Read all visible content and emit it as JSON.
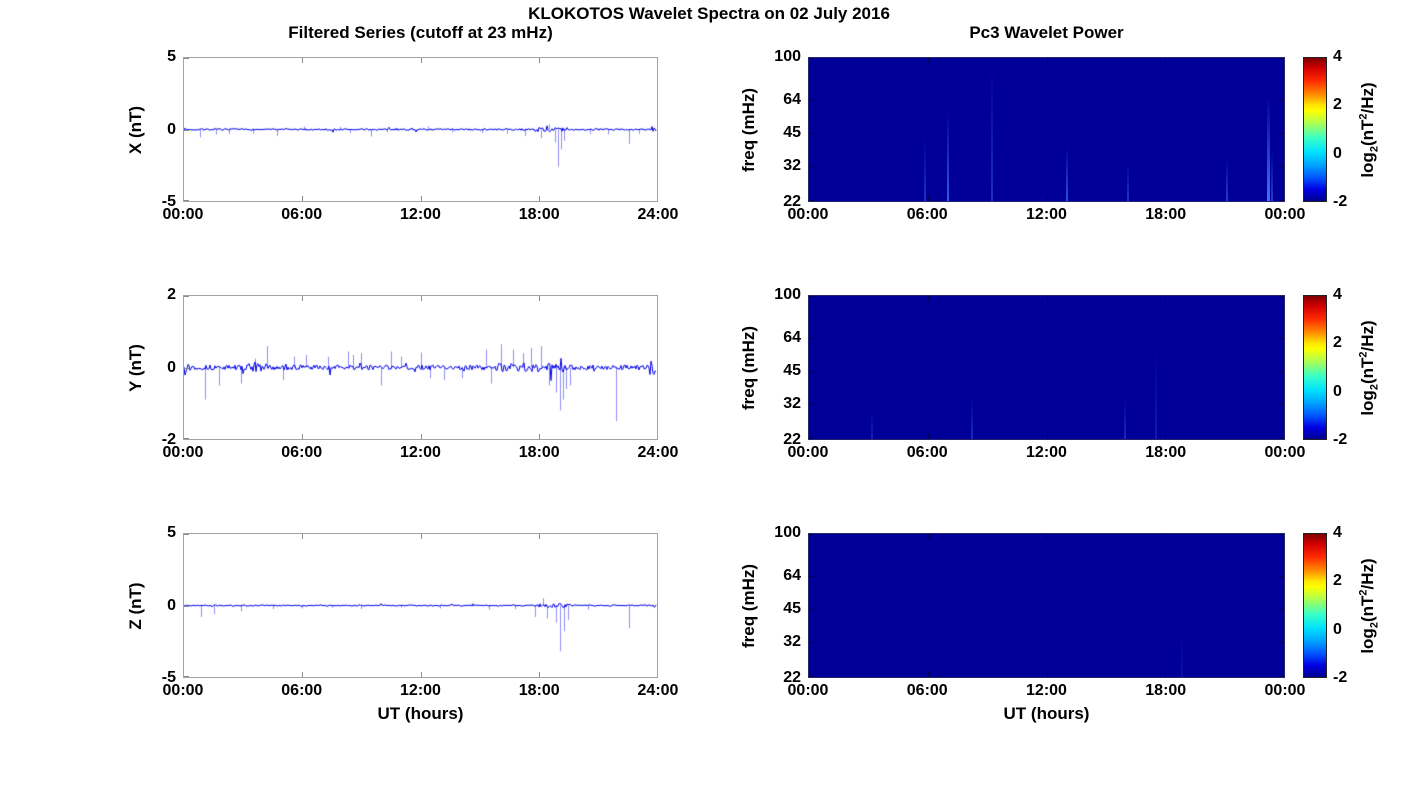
{
  "figure": {
    "title": "KLOKOTOS Wavelet Spectra on 02 July 2016"
  },
  "columns": {
    "left_title": "Filtered Series (cutoff at 23 mHz)",
    "right_title": "Pc3 Wavelet Power"
  },
  "colors": {
    "line": "#0000e6",
    "spike": "#3333ee",
    "spectrogram_bg": "#000099",
    "streak_rgb": "70,120,255",
    "axis_frame": "#a3a3a3",
    "text": "#000000",
    "colorbar_stops": [
      "#7f0000 0%",
      "#d10000 7%",
      "#ff2a00 16%",
      "#ff9100 26%",
      "#ffe600 33%",
      "#fdff00 37%",
      "#a8ff57 46%",
      "#39ffc6 56%",
      "#00e1ff 66%",
      "#00a2ff 75%",
      "#0051ff 84%",
      "#0000e0 92%",
      "#000090 100%"
    ]
  },
  "chart_data": [
    {
      "id": "series-x",
      "type": "line",
      "row": 0,
      "col": "left",
      "seed": 7,
      "ylabel": "X (nT)",
      "ylim": [
        -5,
        5
      ],
      "yticks": [
        "5",
        "0",
        "-5"
      ],
      "xlim_hours": [
        0,
        24
      ],
      "xtick_labels": [
        "00:00",
        "06:00",
        "12:00",
        "18:00",
        "24:00"
      ],
      "xlabel": "",
      "noise_amp": 0.06,
      "dense_segments": [
        [
          0.0,
          0.3,
          0.1
        ],
        [
          17.8,
          19.5,
          0.15
        ],
        [
          23.72,
          24.0,
          0.32
        ]
      ],
      "spikes": [
        [
          0.8,
          -0.55
        ],
        [
          1.6,
          -0.35
        ],
        [
          2.3,
          -0.3
        ],
        [
          3.5,
          -0.3
        ],
        [
          4.7,
          -0.45
        ],
        [
          6.1,
          0.2
        ],
        [
          7.9,
          0.18
        ],
        [
          8.4,
          -0.25
        ],
        [
          9.5,
          -0.5
        ],
        [
          10.3,
          -0.2
        ],
        [
          12.4,
          0.22
        ],
        [
          13.6,
          -0.2
        ],
        [
          15.1,
          -0.25
        ],
        [
          16.4,
          -0.3
        ],
        [
          17.3,
          -0.45
        ],
        [
          18.1,
          -0.6
        ],
        [
          18.5,
          0.35
        ],
        [
          18.8,
          -0.9
        ],
        [
          19.0,
          -2.6
        ],
        [
          19.15,
          -1.4
        ],
        [
          19.3,
          -0.8
        ],
        [
          20.6,
          -0.3
        ],
        [
          21.5,
          -0.35
        ],
        [
          22.6,
          -1.0
        ],
        [
          23.1,
          -0.3
        ]
      ]
    },
    {
      "id": "wavelet-x",
      "type": "heatmap",
      "row": 0,
      "col": "right",
      "ylabel": "freq (mHz)",
      "ylog_domain": [
        22,
        100
      ],
      "yticks": [
        "100",
        "64",
        "45",
        "32",
        "22"
      ],
      "xtick_labels": [
        "00:00",
        "06:00",
        "12:00",
        "18:00",
        "00:00"
      ],
      "xlabel": "",
      "colorbar": {
        "ticks": [
          "4",
          "2",
          "0",
          "-2"
        ],
        "label_parts": {
          "pre": "log",
          "sub": "2",
          "mid": "(nT",
          "sup": "2",
          "post": "/Hz)"
        }
      },
      "streaks": [
        {
          "t": 5.85,
          "hfrac": 0.45,
          "alpha": 0.4,
          "w": 2
        },
        {
          "t": 7.0,
          "hfrac": 0.62,
          "alpha": 0.75,
          "w": 2
        },
        {
          "t": 9.25,
          "hfrac": 0.93,
          "alpha": 0.4,
          "w": 2
        },
        {
          "t": 13.05,
          "hfrac": 0.38,
          "alpha": 0.65,
          "w": 2
        },
        {
          "t": 16.1,
          "hfrac": 0.25,
          "alpha": 0.45,
          "w": 2
        },
        {
          "t": 21.1,
          "hfrac": 0.3,
          "alpha": 0.5,
          "w": 2
        },
        {
          "t": 23.2,
          "hfrac": 0.72,
          "alpha": 0.95,
          "w": 3
        },
        {
          "t": 23.38,
          "hfrac": 0.35,
          "alpha": 0.5,
          "w": 2
        }
      ]
    },
    {
      "id": "series-y",
      "type": "line",
      "row": 1,
      "col": "left",
      "seed": 13,
      "ylabel": "Y (nT)",
      "ylim": [
        -2,
        2
      ],
      "yticks": [
        "2",
        "0",
        "-2"
      ],
      "xlim_hours": [
        0,
        24
      ],
      "xtick_labels": [
        "00:00",
        "06:00",
        "12:00",
        "18:00",
        "24:00"
      ],
      "xlabel": "",
      "noise_amp": 0.07,
      "dense_segments": [
        [
          0.0,
          0.45,
          0.12
        ],
        [
          3.5,
          3.95,
          0.16
        ],
        [
          15.7,
          19.5,
          0.13
        ],
        [
          23.6,
          24.0,
          0.2
        ]
      ],
      "spikes": [
        [
          1.05,
          -0.9
        ],
        [
          1.8,
          -0.5
        ],
        [
          2.9,
          -0.45
        ],
        [
          3.6,
          0.25
        ],
        [
          4.2,
          0.6
        ],
        [
          5.0,
          -0.35
        ],
        [
          5.6,
          0.3
        ],
        [
          6.2,
          0.35
        ],
        [
          7.3,
          0.3
        ],
        [
          8.3,
          0.45
        ],
        [
          8.6,
          0.35
        ],
        [
          9.0,
          0.4
        ],
        [
          10.0,
          -0.5
        ],
        [
          10.5,
          0.45
        ],
        [
          11.0,
          0.3
        ],
        [
          12.0,
          0.42
        ],
        [
          12.5,
          -0.3
        ],
        [
          13.2,
          -0.35
        ],
        [
          14.1,
          -0.3
        ],
        [
          15.3,
          0.5
        ],
        [
          15.6,
          -0.45
        ],
        [
          16.1,
          0.65
        ],
        [
          16.7,
          0.5
        ],
        [
          17.2,
          0.4
        ],
        [
          17.6,
          0.55
        ],
        [
          18.1,
          0.6
        ],
        [
          18.5,
          -0.5
        ],
        [
          18.9,
          -0.7
        ],
        [
          19.1,
          -1.2
        ],
        [
          19.25,
          -0.9
        ],
        [
          19.4,
          -0.6
        ],
        [
          19.6,
          -0.5
        ],
        [
          21.9,
          -1.5
        ]
      ]
    },
    {
      "id": "wavelet-y",
      "type": "heatmap",
      "row": 1,
      "col": "right",
      "ylabel": "freq (mHz)",
      "ylog_domain": [
        22,
        100
      ],
      "yticks": [
        "100",
        "64",
        "45",
        "32",
        "22"
      ],
      "xtick_labels": [
        "00:00",
        "06:00",
        "12:00",
        "18:00",
        "00:00"
      ],
      "xlabel": "",
      "colorbar": {
        "ticks": [
          "4",
          "2",
          "0",
          "-2"
        ],
        "label_parts": {
          "pre": "log",
          "sub": "2",
          "mid": "(nT",
          "sup": "2",
          "post": "/Hz)"
        }
      },
      "streaks": [
        {
          "t": 3.2,
          "hfrac": 0.18,
          "alpha": 0.3,
          "w": 2
        },
        {
          "t": 8.25,
          "hfrac": 0.3,
          "alpha": 0.35,
          "w": 2
        },
        {
          "t": 15.95,
          "hfrac": 0.28,
          "alpha": 0.35,
          "w": 2
        },
        {
          "t": 17.55,
          "hfrac": 0.62,
          "alpha": 0.22,
          "w": 2
        }
      ]
    },
    {
      "id": "series-z",
      "type": "line",
      "row": 2,
      "col": "left",
      "seed": 21,
      "ylabel": "Z (nT)",
      "ylim": [
        -5,
        5
      ],
      "yticks": [
        "5",
        "0",
        "-5"
      ],
      "xlim_hours": [
        0,
        24
      ],
      "xtick_labels": [
        "00:00",
        "06:00",
        "12:00",
        "18:00",
        "24:00"
      ],
      "xlabel": "UT (hours)",
      "noise_amp": 0.05,
      "dense_segments": [
        [
          18.0,
          19.6,
          0.15
        ],
        [
          23.8,
          24.0,
          0.12
        ]
      ],
      "spikes": [
        [
          0.85,
          -0.8
        ],
        [
          1.5,
          -0.6
        ],
        [
          2.9,
          -0.4
        ],
        [
          4.5,
          -0.25
        ],
        [
          6.0,
          -0.2
        ],
        [
          7.5,
          -0.15
        ],
        [
          9.0,
          -0.25
        ],
        [
          11.0,
          -0.15
        ],
        [
          13.0,
          -0.2
        ],
        [
          15.5,
          -0.3
        ],
        [
          16.8,
          -0.25
        ],
        [
          17.8,
          -0.8
        ],
        [
          18.2,
          0.5
        ],
        [
          18.4,
          -0.9
        ],
        [
          18.9,
          -1.2
        ],
        [
          19.1,
          -3.2
        ],
        [
          19.3,
          -1.8
        ],
        [
          19.5,
          -1.0
        ],
        [
          20.5,
          -0.3
        ],
        [
          22.6,
          -1.6
        ]
      ]
    },
    {
      "id": "wavelet-z",
      "type": "heatmap",
      "row": 2,
      "col": "right",
      "ylabel": "freq (mHz)",
      "ylog_domain": [
        22,
        100
      ],
      "yticks": [
        "100",
        "64",
        "45",
        "32",
        "22"
      ],
      "xtick_labels": [
        "00:00",
        "06:00",
        "12:00",
        "18:00",
        "00:00"
      ],
      "xlabel": "UT (hours)",
      "colorbar": {
        "ticks": [
          "4",
          "2",
          "0",
          "-2"
        ],
        "label_parts": {
          "pre": "log",
          "sub": "2",
          "mid": "(nT",
          "sup": "2",
          "post": "/Hz)"
        }
      },
      "streaks": [
        {
          "t": 18.85,
          "hfrac": 0.3,
          "alpha": 0.14,
          "w": 2
        }
      ]
    }
  ]
}
